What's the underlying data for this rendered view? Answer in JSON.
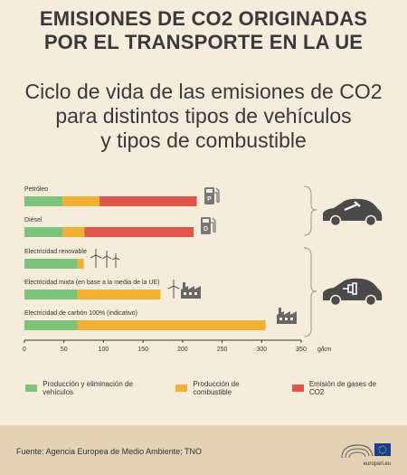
{
  "header": {
    "title_line1": "EMISIONES DE CO2 ORIGINADAS",
    "title_line2": "POR EL TRANSPORTE EN LA UE",
    "subtitle_line1": "Ciclo de vida de las emisiones de CO2",
    "subtitle_line2": "para distintos tipos de vehículos",
    "subtitle_line3": "y tipos de combustible"
  },
  "colors": {
    "vehicle": "#7cc47c",
    "fuel": "#f2b135",
    "exhaust": "#e2564a",
    "axis": "#3a3a3a"
  },
  "chart_data": {
    "type": "bar",
    "orientation": "horizontal",
    "stacked": true,
    "categories": [
      "Petróleo",
      "Diésel",
      "Electricidad renovable",
      "Electricidad mixta (en base a la media de la UE)",
      "Electricidad de carbón 100% (indicativo)"
    ],
    "series": [
      {
        "name": "Producción y eliminación de vehículos",
        "values": [
          48,
          48,
          67,
          67,
          67
        ]
      },
      {
        "name": "Producción de combustible",
        "values": [
          47,
          28,
          8,
          105,
          238
        ]
      },
      {
        "name": "Emisión de gases de CO2",
        "values": [
          123,
          138,
          0,
          0,
          0
        ]
      }
    ],
    "xlim": [
      0,
      350
    ],
    "xticks": [
      0,
      50,
      100,
      150,
      200,
      250,
      300,
      350
    ],
    "xunit": "g/km",
    "legend_position": "bottom"
  },
  "legend": [
    {
      "label": "Producción y eliminación de vehículos",
      "color": "#7cc47c"
    },
    {
      "label": "Producción de combustible",
      "color": "#f2b135"
    },
    {
      "label": "Emisión de gases de CO2",
      "color": "#e2564a"
    }
  ],
  "icons": [
    "fuel-pump-p-icon",
    "fuel-pump-d-icon",
    "wind-turbine-icon",
    "factory-icon",
    "combustion-car-icon",
    "electric-car-icon"
  ],
  "footer": {
    "source": "Fuente: Agencia Europea de Medio Ambiente; TNO",
    "logo_text": "europarl.eu"
  }
}
